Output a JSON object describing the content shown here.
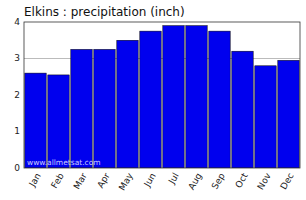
{
  "chart_data": {
    "type": "bar",
    "title": "Elkins : precipitation (inch)",
    "categories": [
      "Jan",
      "Feb",
      "Mar",
      "Apr",
      "May",
      "Jun",
      "Jul",
      "Aug",
      "Sep",
      "Oct",
      "Nov",
      "Dec"
    ],
    "values": [
      2.6,
      2.55,
      3.25,
      3.25,
      3.5,
      3.75,
      3.9,
      3.9,
      3.75,
      3.2,
      2.8,
      2.95
    ],
    "color": "#0000EE",
    "ylim": [
      0,
      4
    ],
    "yticks": [
      0,
      1,
      2,
      3,
      4
    ],
    "reference_line": 3.0,
    "annotation": "www.allmetsat.com",
    "grid": false
  }
}
